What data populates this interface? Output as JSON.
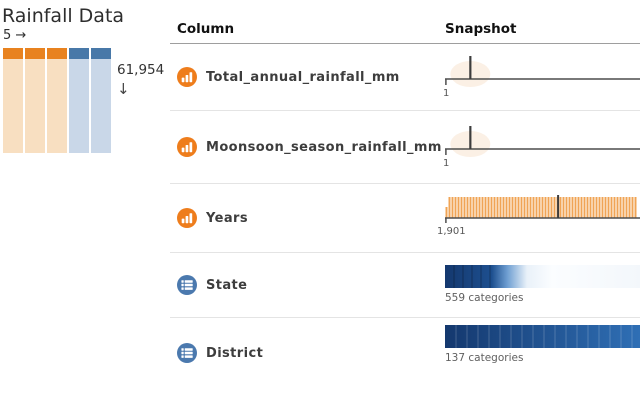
{
  "dataset_panel": {
    "title": "Rainfall Data",
    "column_count": "5",
    "column_arrow": "→",
    "row_count": "61,954",
    "row_arrow": "↓",
    "mini_columns": [
      {
        "kind": "numeric"
      },
      {
        "kind": "numeric"
      },
      {
        "kind": "numeric"
      },
      {
        "kind": "categorical"
      },
      {
        "kind": "categorical"
      }
    ],
    "colors": {
      "numeric_header": "#e8821f",
      "numeric_body": "#f8dfc1",
      "categorical_header": "#4878a8",
      "categorical_body": "#c9d7e8"
    }
  },
  "table": {
    "headers": {
      "column": "Column",
      "snapshot": "Snapshot"
    },
    "rows": [
      {
        "name": "Total_annual_rainfall_mm",
        "dtype": "numeric",
        "snapshot": {
          "type": "spike_histogram",
          "tick_label": "1",
          "spike_pos_pct": 13
        }
      },
      {
        "name": "Moonsoon_season_rainfall_mm",
        "dtype": "numeric",
        "snapshot": {
          "type": "spike_histogram",
          "tick_label": "1",
          "spike_pos_pct": 13
        }
      },
      {
        "name": "Years",
        "dtype": "numeric",
        "snapshot": {
          "type": "uniform_histogram",
          "tick_label": "1,901",
          "marker_pos_pct": 58,
          "bar_count": 64
        }
      },
      {
        "name": "State",
        "dtype": "categorical",
        "snapshot": {
          "type": "category_bar",
          "caption": "559 categories",
          "fade": true
        }
      },
      {
        "name": "District",
        "dtype": "categorical",
        "snapshot": {
          "type": "category_bar",
          "caption": "137 categories",
          "fade": false
        }
      }
    ],
    "colors": {
      "numeric_icon": "#ee7d1c",
      "categorical_icon": "#4b79ae",
      "spike": "#3d3d3d",
      "baseline": "#4d4d4d",
      "hist_bar": "#f0a455",
      "spike_glow": "#f7e2cc",
      "cat_dark": "#14386e",
      "cat_mid": "#2f6fb5"
    }
  }
}
